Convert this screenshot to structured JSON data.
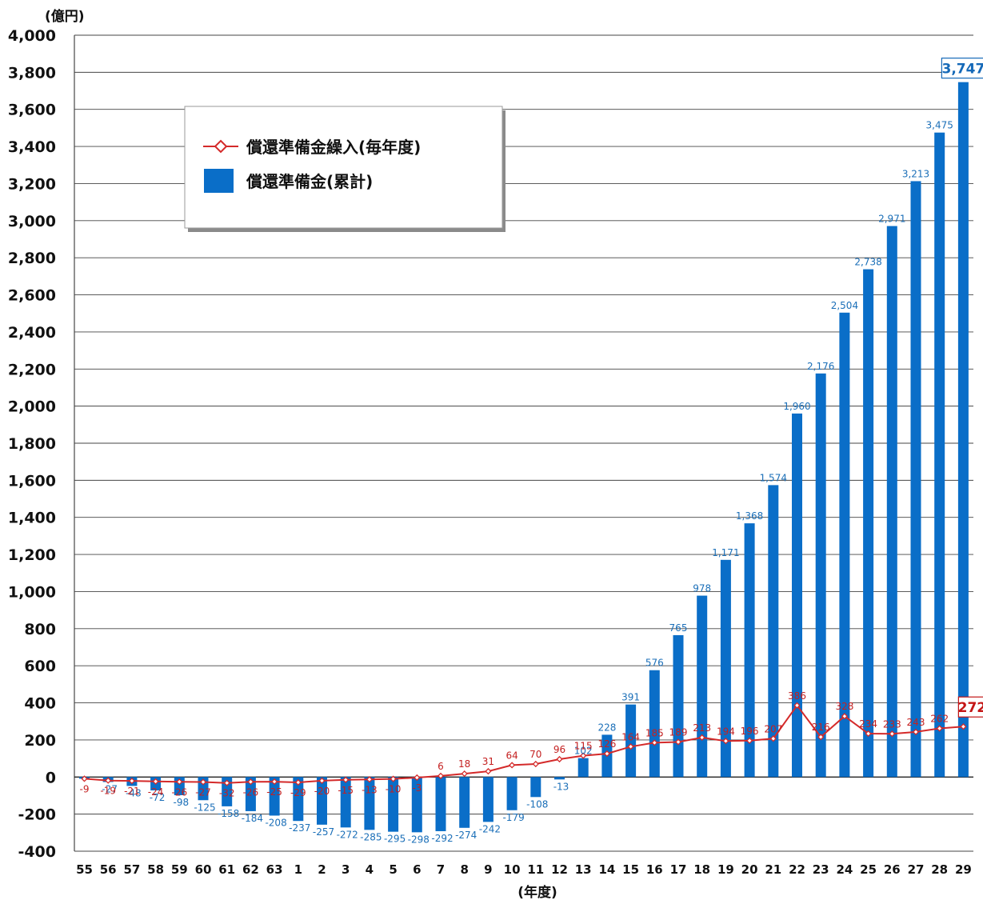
{
  "chart_data": {
    "type": "bar",
    "y_unit_label": "(億円)",
    "xlabel": "(年度)",
    "ylim": [
      -400,
      4000
    ],
    "yticks": [
      4000,
      3800,
      3600,
      3400,
      3200,
      3000,
      2800,
      2600,
      2400,
      2200,
      2000,
      1800,
      1600,
      1400,
      1200,
      1000,
      800,
      600,
      400,
      200,
      0,
      -200,
      -400
    ],
    "ytick_labels": [
      "4,000",
      "3,800",
      "3,600",
      "3,400",
      "3,200",
      "3,000",
      "2,800",
      "2,600",
      "2,400",
      "2,200",
      "2,000",
      "1,800",
      "1,600",
      "1,400",
      "1,200",
      "1,000",
      "800",
      "600",
      "400",
      "200",
      "0",
      "-200",
      "-400"
    ],
    "grid": true,
    "legend_position": "top-left",
    "categories": [
      "55",
      "56",
      "57",
      "58",
      "59",
      "60",
      "61",
      "62",
      "63",
      "1",
      "2",
      "3",
      "4",
      "5",
      "6",
      "7",
      "8",
      "9",
      "10",
      "11",
      "12",
      "13",
      "14",
      "15",
      "16",
      "17",
      "18",
      "19",
      "20",
      "21",
      "22",
      "23",
      "24",
      "25",
      "26",
      "27",
      "28",
      "29"
    ],
    "series": [
      {
        "name": "償還準備金(累計)",
        "kind": "bar",
        "color": "#0a6ec8",
        "values": [
          -9,
          -27,
          -48,
          -72,
          -98,
          -125,
          -158,
          -184,
          -208,
          -237,
          -257,
          -272,
          -285,
          -295,
          -298,
          -292,
          -274,
          -242,
          -179,
          -108,
          -13,
          102,
          228,
          391,
          576,
          765,
          978,
          1171,
          1368,
          1574,
          1960,
          2176,
          2504,
          2738,
          2971,
          3213,
          3475,
          3747
        ],
        "labels": [
          "",
          "-27",
          "-48",
          "-72",
          "-98",
          "-125",
          "-158",
          "-184",
          "-208",
          "-237",
          "-257",
          "-272",
          "-285",
          "-295",
          "-298",
          "-292",
          "-274",
          "-242",
          "-179",
          "-108",
          "-13",
          "102",
          "228",
          "391",
          "576",
          "765",
          "978",
          "1,171",
          "1,368",
          "1,574",
          "1,960",
          "2,176",
          "2,504",
          "2,738",
          "2,971",
          "3,213",
          "3,475",
          "3,747"
        ]
      },
      {
        "name": "償還準備金繰入(毎年度)",
        "kind": "line",
        "color": "#d42a2a",
        "values": [
          -9,
          -19,
          -21,
          -24,
          -26,
          -27,
          -32,
          -26,
          -25,
          -29,
          -20,
          -15,
          -13,
          -10,
          -3,
          6,
          18,
          31,
          64,
          70,
          96,
          115,
          126,
          164,
          185,
          189,
          213,
          194,
          196,
          207,
          386,
          216,
          328,
          234,
          233,
          243,
          262,
          272
        ],
        "labels": [
          "-9",
          "-19",
          "-21",
          "-24",
          "-26",
          "-27",
          "-32",
          "-26",
          "-25",
          "-29",
          "-20",
          "-15",
          "-13",
          "-10",
          "-3",
          "6",
          "18",
          "31",
          "64",
          "70",
          "96",
          "115",
          "126",
          "164",
          "185",
          "189",
          "213",
          "194",
          "196",
          "207",
          "386",
          "216",
          "328",
          "234",
          "233",
          "243",
          "262",
          "272"
        ]
      }
    ]
  }
}
